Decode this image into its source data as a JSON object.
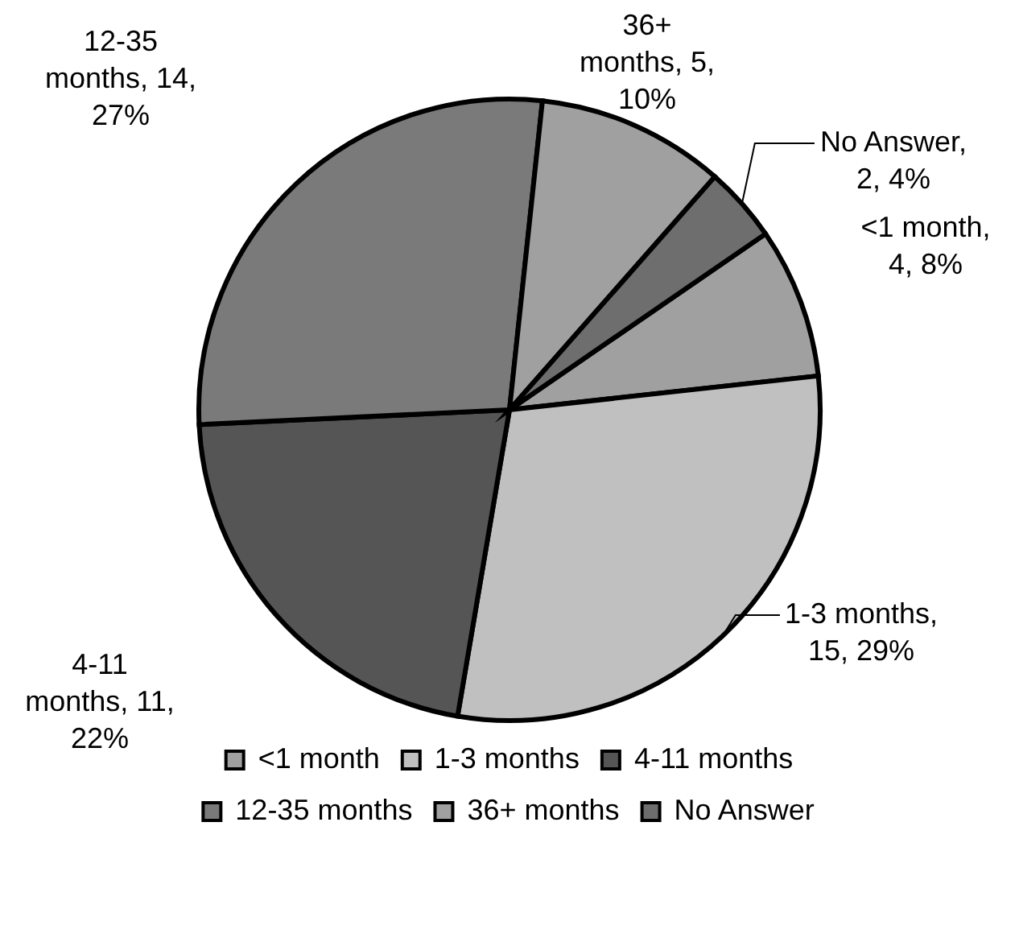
{
  "chart_data": {
    "type": "pie",
    "categories": [
      "<1 month",
      "1-3 months",
      "4-11 months",
      "12-35 months",
      "36+ months",
      "No Answer"
    ],
    "values": [
      4,
      15,
      11,
      14,
      5,
      2
    ],
    "colors": [
      "#a0a0a0",
      "#c0c0c0",
      "#555555",
      "#7a7a7a",
      "#a0a0a0",
      "#6e6e6e"
    ],
    "value_labels": [
      "<1 month, 4, 8%",
      "1-3 months, 15, 29%",
      "4-11 months, 11, 22%",
      "12-35 months, 14, 27%",
      "36+ months, 5, 10%",
      "No Answer, 2, 4%"
    ],
    "legend": "bottom"
  }
}
